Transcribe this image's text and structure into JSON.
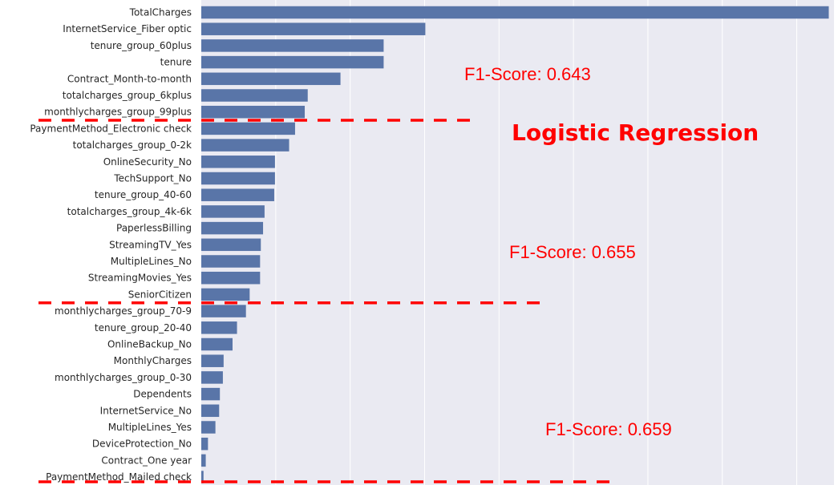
{
  "colors": {
    "bar": "#5975a8",
    "plot_background": "#eaeaf2",
    "grid": "#ffffff",
    "annotation": "#ff0000"
  },
  "chart_data": {
    "type": "bar",
    "orientation": "horizontal",
    "title": "Logistic Regression",
    "xlabel": "",
    "ylabel": "",
    "grid": true,
    "xlim": [
      0,
      0.85
    ],
    "categories": [
      "TotalCharges",
      "InternetService_Fiber optic",
      "tenure_group_60plus",
      "tenure",
      "Contract_Month-to-month",
      "totalcharges_group_6kplus",
      "monthlycharges_group_99plus",
      "PaymentMethod_Electronic check",
      "totalcharges_group_0-2k",
      "OnlineSecurity_No",
      "TechSupport_No",
      "tenure_group_40-60",
      "totalcharges_group_4k-6k",
      "PaperlessBilling",
      "StreamingTV_Yes",
      "MultipleLines_No",
      "StreamingMovies_Yes",
      "SeniorCitizen",
      "monthlycharges_group_70-9",
      "tenure_group_20-40",
      "OnlineBackup_No",
      "MonthlyCharges",
      "monthlycharges_group_0-30",
      "Dependents",
      "InternetService_No",
      "MultipleLines_Yes",
      "DeviceProtection_No",
      "Contract_One year",
      "PaymentMethod_Mailed check"
    ],
    "values": [
      0.843,
      0.301,
      0.245,
      0.245,
      0.187,
      0.143,
      0.139,
      0.126,
      0.118,
      0.099,
      0.099,
      0.098,
      0.085,
      0.083,
      0.08,
      0.079,
      0.079,
      0.065,
      0.06,
      0.048,
      0.042,
      0.03,
      0.029,
      0.025,
      0.024,
      0.019,
      0.009,
      0.006,
      0.003
    ],
    "annotations": [
      {
        "text": "F1-Score: 0.643",
        "after_category_index": 6
      },
      {
        "text": "F1-Score: 0.655",
        "after_category_index": 17
      },
      {
        "text": "F1-Score: 0.659",
        "after_category_index": 28
      }
    ]
  }
}
